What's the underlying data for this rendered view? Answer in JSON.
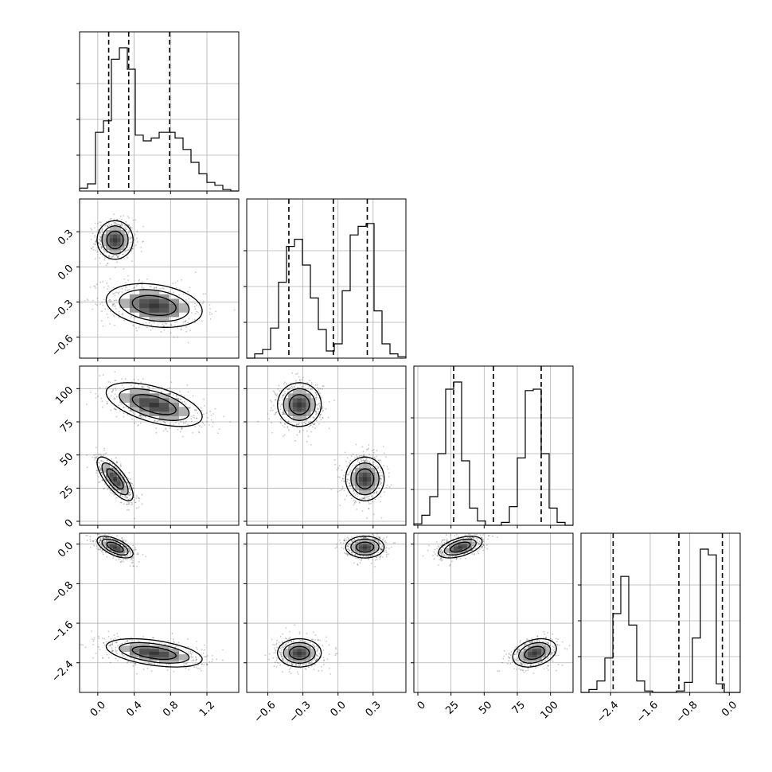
{
  "figure": {
    "type": "corner-plot",
    "style": {
      "line_color": "#000000",
      "grid_color": "#b0b0b0",
      "background": "#ffffff"
    }
  },
  "chart_data": {
    "type": "corner",
    "params": [
      {
        "id": "p0",
        "range": [
          -0.2,
          1.55
        ],
        "ticks": [
          0.0,
          0.4,
          0.8,
          1.2
        ],
        "tick_labels": [
          "0.0",
          "0.4",
          "0.8",
          "1.2"
        ],
        "quantiles": [
          0.12,
          0.34,
          0.79
        ],
        "hist": [
          0.02,
          0.05,
          0.41,
          0.49,
          0.92,
          1.0,
          0.85,
          0.39,
          0.35,
          0.37,
          0.41,
          0.41,
          0.37,
          0.29,
          0.2,
          0.12,
          0.06,
          0.04,
          0.01,
          0.0
        ]
      },
      {
        "id": "p1",
        "range": [
          -0.78,
          0.58
        ],
        "ticks": [
          -0.6,
          -0.3,
          0.0,
          0.3
        ],
        "tick_labels": [
          "−0.6",
          "−0.3",
          "0.0",
          "0.3"
        ],
        "quantiles": [
          -0.42,
          -0.04,
          0.25
        ],
        "hist": [
          0.0,
          0.03,
          0.06,
          0.21,
          0.53,
          0.78,
          0.83,
          0.65,
          0.42,
          0.2,
          0.05,
          0.1,
          0.47,
          0.86,
          0.92,
          0.94,
          0.33,
          0.1,
          0.03,
          0.01
        ]
      },
      {
        "id": "p2",
        "range": [
          -3,
          117
        ],
        "ticks": [
          0,
          25,
          50,
          75,
          100
        ],
        "tick_labels": [
          "0",
          "25",
          "50",
          "75",
          "100"
        ],
        "quantiles": [
          27,
          57,
          93
        ],
        "hist": [
          0.01,
          0.07,
          0.2,
          0.5,
          0.95,
          1.0,
          0.45,
          0.12,
          0.03,
          0.0,
          0.0,
          0.02,
          0.13,
          0.47,
          0.94,
          0.95,
          0.5,
          0.12,
          0.02,
          0.0
        ]
      },
      {
        "id": "p3",
        "range": [
          -3.0,
          0.22
        ],
        "ticks": [
          -2.4,
          -1.6,
          -0.8,
          0.0
        ],
        "tick_labels": [
          "−2.4",
          "−1.6",
          "−0.8",
          "0.0"
        ],
        "quantiles": [
          -2.35,
          -1.02,
          -0.14
        ],
        "hist": [
          0.0,
          0.02,
          0.08,
          0.24,
          0.55,
          0.81,
          0.47,
          0.08,
          0.01,
          0.0,
          0.0,
          0.0,
          0.01,
          0.07,
          0.38,
          1.0,
          0.96,
          0.06,
          0.0,
          0.0
        ]
      }
    ],
    "modes": [
      {
        "weight": 0.5,
        "mean": [
          0.19,
          0.23,
          32,
          -0.06
        ],
        "sd": [
          0.09,
          0.075,
          7.5,
          0.1
        ],
        "corr": [
          [
            1,
            0.0,
            -0.75,
            -0.6
          ],
          [
            0.0,
            1,
            0.0,
            0.0
          ],
          [
            -0.75,
            0.0,
            1,
            0.5
          ],
          [
            -0.6,
            0.0,
            0.5,
            1
          ]
        ]
      },
      {
        "weight": 0.5,
        "mean": [
          0.62,
          -0.33,
          88,
          -2.2
        ],
        "sd": [
          0.24,
          0.085,
          7.5,
          0.13
        ],
        "corr": [
          [
            1,
            -0.25,
            -0.55,
            -0.45
          ],
          [
            -0.25,
            1,
            0.0,
            0.0
          ],
          [
            -0.55,
            0.0,
            1,
            0.3
          ],
          [
            -0.45,
            0.0,
            0.3,
            1
          ]
        ]
      }
    ],
    "grid": true,
    "contour_levels_sigma": [
      1.0,
      1.6,
      2.2
    ]
  }
}
